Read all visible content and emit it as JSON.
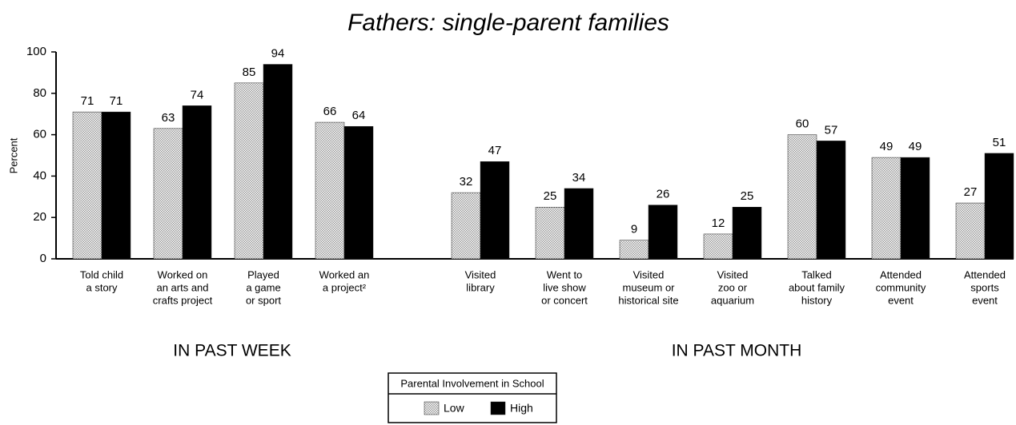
{
  "chart_data": {
    "type": "bar",
    "title": "Fathers: single-parent families",
    "y_label": "Percent",
    "ylim": [
      0,
      100
    ],
    "yticks": [
      0,
      20,
      40,
      60,
      80,
      100
    ],
    "legend_title": "Parental Involvement in School",
    "series": [
      {
        "name": "Low",
        "color": "#9a9a9a"
      },
      {
        "name": "High",
        "color": "#000000"
      }
    ],
    "panels": [
      {
        "label": "IN PAST WEEK",
        "categories": [
          [
            "Told child",
            "a story"
          ],
          [
            "Worked on",
            "an arts and",
            "crafts project"
          ],
          [
            "Played",
            "a game",
            "or sport"
          ],
          [
            "Worked an",
            "a project²"
          ]
        ],
        "series": [
          {
            "values": [
              71,
              63,
              85,
              66
            ]
          },
          {
            "values": [
              71,
              74,
              94,
              64
            ]
          }
        ]
      },
      {
        "label": "IN PAST MONTH",
        "categories": [
          [
            "Visited",
            "library"
          ],
          [
            "Went to",
            "live show",
            "or concert"
          ],
          [
            "Visited",
            "museum or",
            "historical site"
          ],
          [
            "Visited",
            "zoo or",
            "aquarium"
          ],
          [
            "Talked",
            "about family",
            "history"
          ],
          [
            "Attended",
            "community",
            "event"
          ],
          [
            "Attended",
            "sports",
            "event"
          ]
        ],
        "series": [
          {
            "values": [
              32,
              25,
              9,
              12,
              60,
              49,
              27
            ]
          },
          {
            "values": [
              47,
              34,
              26,
              25,
              57,
              49,
              51
            ]
          }
        ]
      }
    ]
  }
}
